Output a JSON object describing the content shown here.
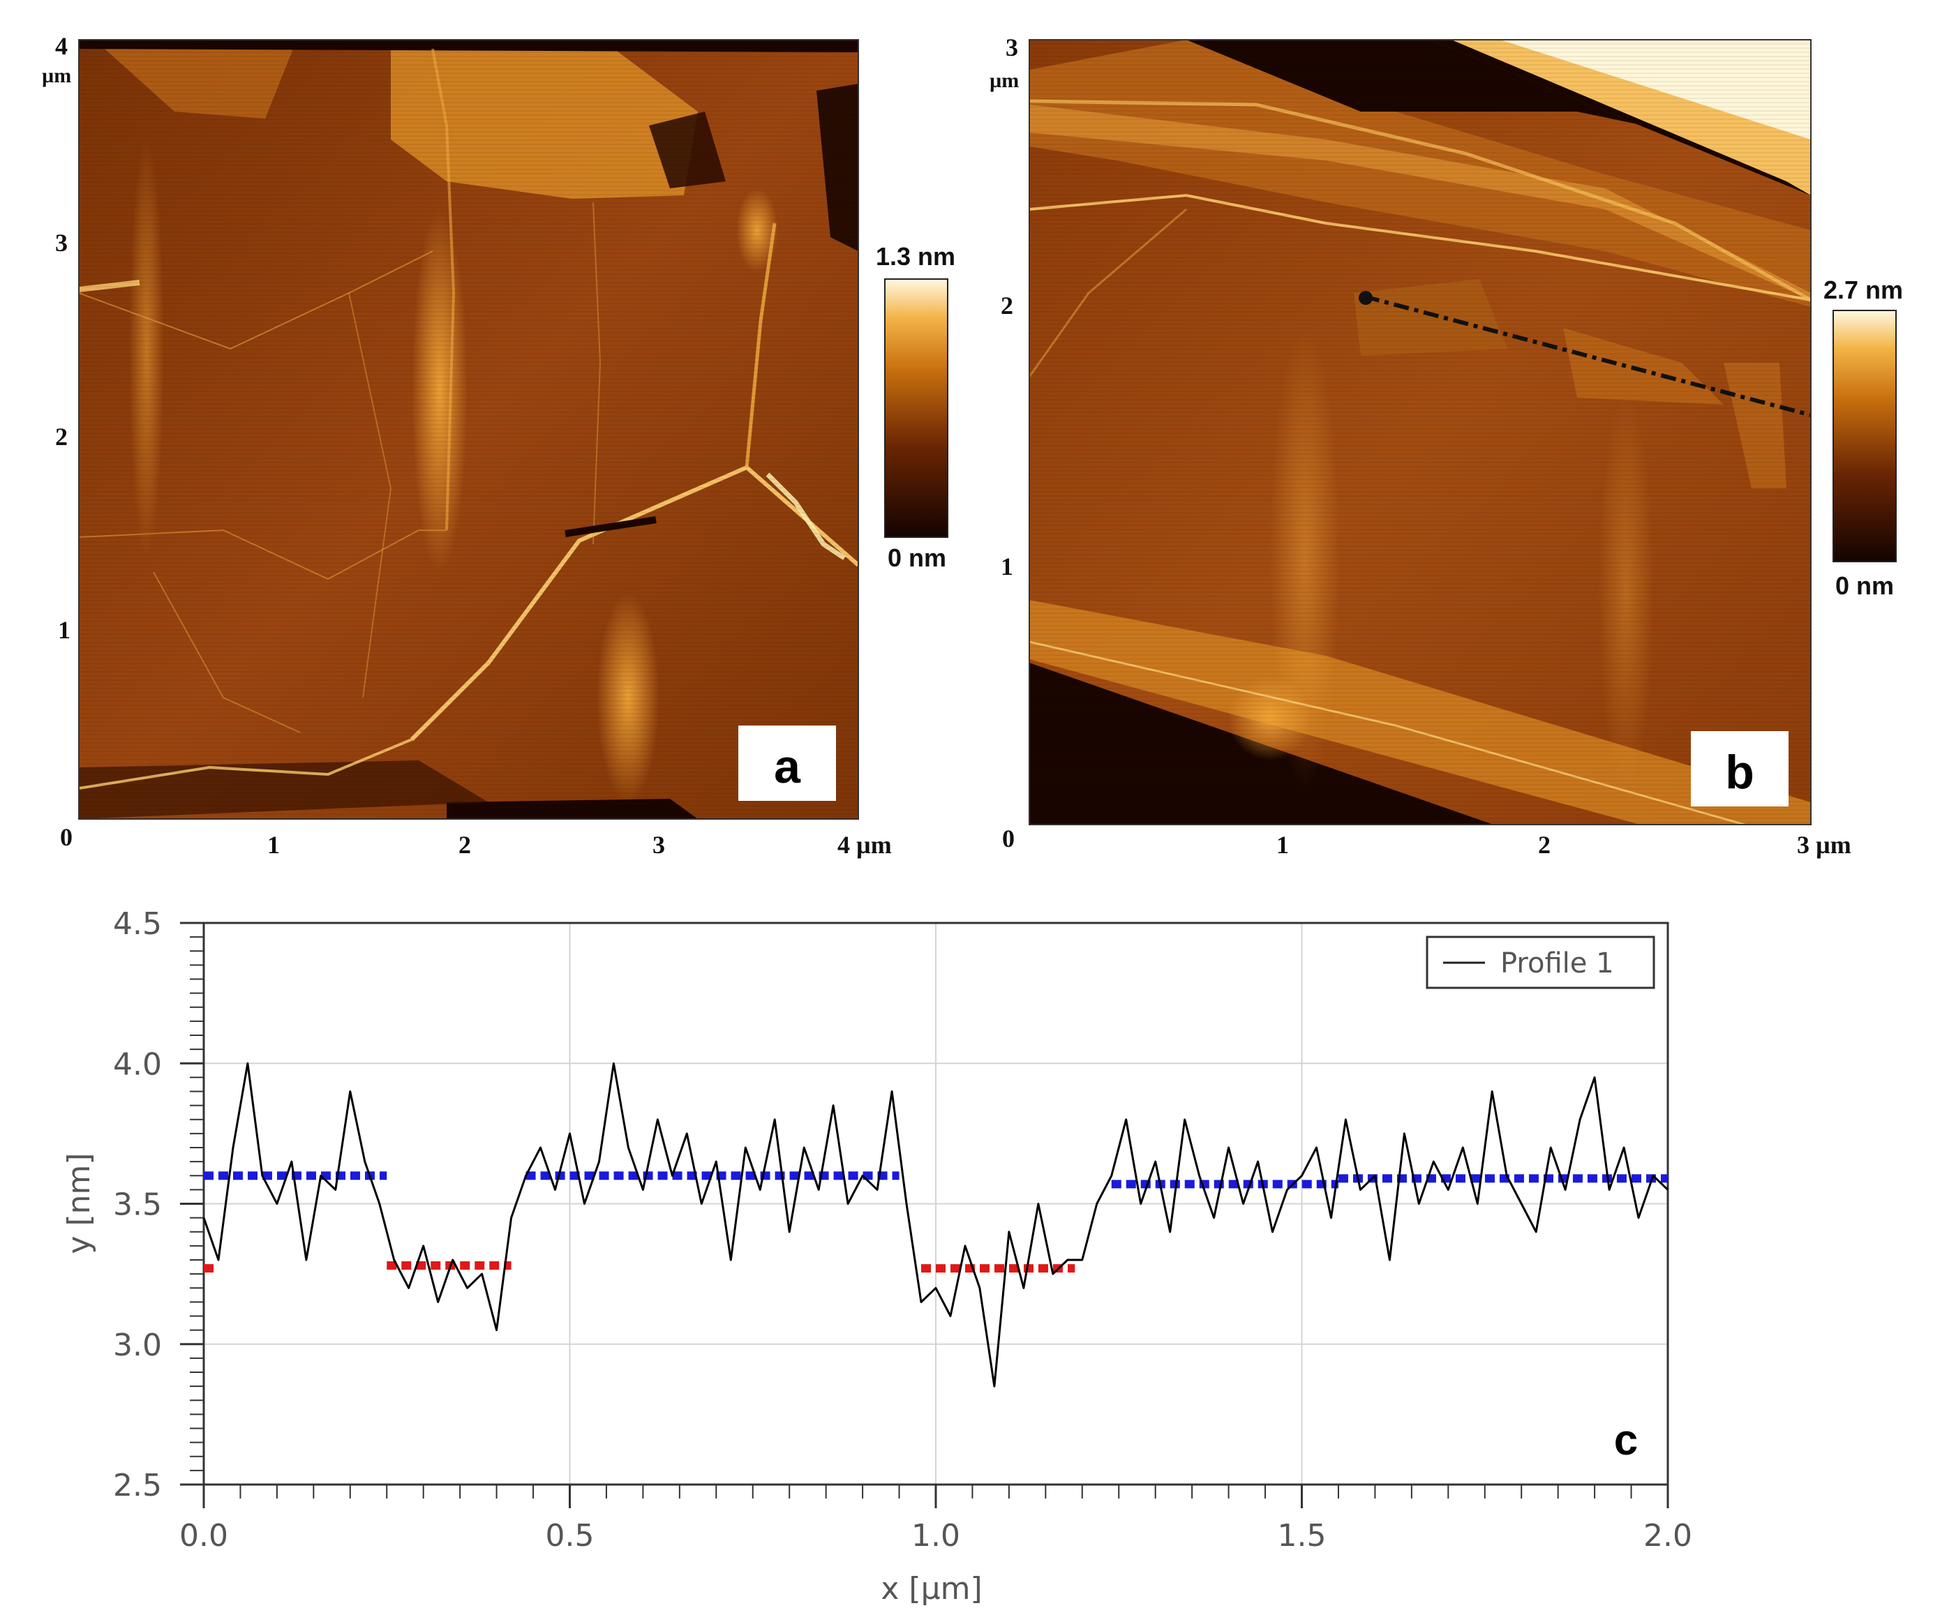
{
  "panels": {
    "a": {
      "letter": "a",
      "x_ticks": [
        "0",
        "1",
        "2",
        "3",
        "4 µm"
      ],
      "y_ticks": [
        "0",
        "1",
        "2",
        "3",
        "4"
      ],
      "y_unit": "µm",
      "colorbar": {
        "max": "1.3 nm",
        "min": "0 nm"
      }
    },
    "b": {
      "letter": "b",
      "x_ticks": [
        "0",
        "1",
        "2",
        "3 µm"
      ],
      "y_ticks": [
        "1",
        "2",
        "3"
      ],
      "y_unit": "µm",
      "colorbar": {
        "max": "2.7 nm",
        "min": "0 nm"
      }
    }
  },
  "colors": {
    "afm_dark": "#1a0500",
    "afm_mid": "#8a3a08",
    "afm_bright": "#f0a030",
    "afm_white": "#fff6d8",
    "profile_line": "#000000",
    "level_high": "#1a1adc",
    "level_low": "#e01818"
  },
  "chart_data": {
    "panel_letter": "c",
    "type": "line",
    "xlabel": "x [µm]",
    "ylabel": "y [nm]",
    "xlim": [
      0.0,
      2.0
    ],
    "ylim": [
      2.5,
      4.5
    ],
    "x_ticks": [
      "0.0",
      "0.5",
      "1.0",
      "1.5",
      "2.0"
    ],
    "y_ticks": [
      "2.5",
      "3.0",
      "3.5",
      "4.0",
      "4.5"
    ],
    "grid": true,
    "legend": {
      "position": "top-right",
      "entries": [
        "Profile 1"
      ]
    },
    "series": [
      {
        "name": "Profile 1",
        "x": [
          0.0,
          0.02,
          0.04,
          0.06,
          0.08,
          0.1,
          0.12,
          0.14,
          0.16,
          0.18,
          0.2,
          0.22,
          0.24,
          0.26,
          0.28,
          0.3,
          0.32,
          0.34,
          0.36,
          0.38,
          0.4,
          0.42,
          0.44,
          0.46,
          0.48,
          0.5,
          0.52,
          0.54,
          0.56,
          0.58,
          0.6,
          0.62,
          0.64,
          0.66,
          0.68,
          0.7,
          0.72,
          0.74,
          0.76,
          0.78,
          0.8,
          0.82,
          0.84,
          0.86,
          0.88,
          0.9,
          0.92,
          0.94,
          0.96,
          0.98,
          1.0,
          1.02,
          1.04,
          1.06,
          1.08,
          1.1,
          1.12,
          1.14,
          1.16,
          1.18,
          1.2,
          1.22,
          1.24,
          1.26,
          1.28,
          1.3,
          1.32,
          1.34,
          1.36,
          1.38,
          1.4,
          1.42,
          1.44,
          1.46,
          1.48,
          1.5,
          1.52,
          1.54,
          1.56,
          1.58,
          1.6,
          1.62,
          1.64,
          1.66,
          1.68,
          1.7,
          1.72,
          1.74,
          1.76,
          1.78,
          1.8,
          1.82,
          1.84,
          1.86,
          1.88,
          1.9,
          1.92,
          1.94,
          1.96,
          1.98,
          2.0
        ],
        "y": [
          3.45,
          3.3,
          3.7,
          4.0,
          3.6,
          3.5,
          3.65,
          3.3,
          3.6,
          3.55,
          3.9,
          3.65,
          3.5,
          3.3,
          3.2,
          3.35,
          3.15,
          3.3,
          3.2,
          3.25,
          3.05,
          3.45,
          3.6,
          3.7,
          3.55,
          3.75,
          3.5,
          3.65,
          4.0,
          3.7,
          3.55,
          3.8,
          3.6,
          3.75,
          3.5,
          3.65,
          3.3,
          3.7,
          3.55,
          3.8,
          3.4,
          3.7,
          3.55,
          3.85,
          3.5,
          3.6,
          3.55,
          3.9,
          3.5,
          3.15,
          3.2,
          3.1,
          3.35,
          3.2,
          2.85,
          3.4,
          3.2,
          3.5,
          3.25,
          3.3,
          3.3,
          3.5,
          3.6,
          3.8,
          3.5,
          3.65,
          3.4,
          3.8,
          3.6,
          3.45,
          3.7,
          3.5,
          3.65,
          3.4,
          3.55,
          3.6,
          3.7,
          3.45,
          3.8,
          3.55,
          3.6,
          3.3,
          3.75,
          3.5,
          3.65,
          3.55,
          3.7,
          3.5,
          3.9,
          3.6,
          3.5,
          3.4,
          3.7,
          3.55,
          3.8,
          3.95,
          3.55,
          3.7,
          3.45,
          3.6,
          3.55
        ]
      }
    ],
    "level_lines": [
      {
        "level": "high",
        "y": 3.6,
        "x_start": 0.0,
        "x_end": 0.25
      },
      {
        "level": "low",
        "y": 3.27,
        "x_start": 0.0,
        "x_end": 0.02
      },
      {
        "level": "low",
        "y": 3.28,
        "x_start": 0.25,
        "x_end": 0.42
      },
      {
        "level": "high",
        "y": 3.6,
        "x_start": 0.44,
        "x_end": 0.95
      },
      {
        "level": "low",
        "y": 3.27,
        "x_start": 0.98,
        "x_end": 1.19
      },
      {
        "level": "high",
        "y": 3.57,
        "x_start": 1.24,
        "x_end": 1.55
      },
      {
        "level": "high",
        "y": 3.59,
        "x_start": 1.55,
        "x_end": 2.0
      }
    ]
  }
}
